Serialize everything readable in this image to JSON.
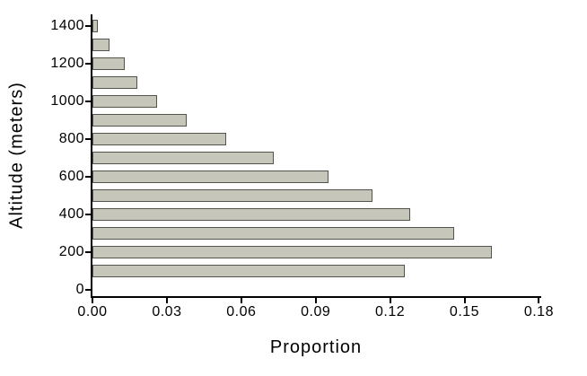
{
  "chart_data": {
    "type": "bar",
    "orientation": "horizontal",
    "title": "",
    "xlabel": "Proportion",
    "ylabel": "Altitude (meters)",
    "categories": [
      100,
      200,
      300,
      400,
      500,
      600,
      700,
      800,
      900,
      1000,
      1100,
      1200,
      1300,
      1400
    ],
    "values": [
      0.126,
      0.161,
      0.146,
      0.128,
      0.113,
      0.095,
      0.073,
      0.054,
      0.038,
      0.026,
      0.018,
      0.013,
      0.007,
      0.002
    ],
    "xlim": [
      0,
      0.18
    ],
    "ylim": [
      0,
      1450
    ],
    "x_tick_values": [
      0,
      0.03,
      0.06,
      0.09,
      0.12,
      0.15,
      0.18
    ],
    "x_tick_labels": [
      "0.00",
      "0.03",
      "0.06",
      "0.09",
      "0.12",
      "0.15",
      "0.18"
    ],
    "y_tick_values": [
      0,
      200,
      400,
      600,
      800,
      1000,
      1200,
      1400
    ],
    "y_tick_labels": [
      "0",
      "200",
      "400",
      "600",
      "800",
      "1000",
      "1200",
      "1400"
    ],
    "grid": false,
    "legend_position": "none",
    "colors": {
      "bar_fill": "#c6c6bb",
      "bar_border": "#54544c",
      "axis": "#000000",
      "text": "#000000",
      "background": "#ffffff"
    }
  }
}
